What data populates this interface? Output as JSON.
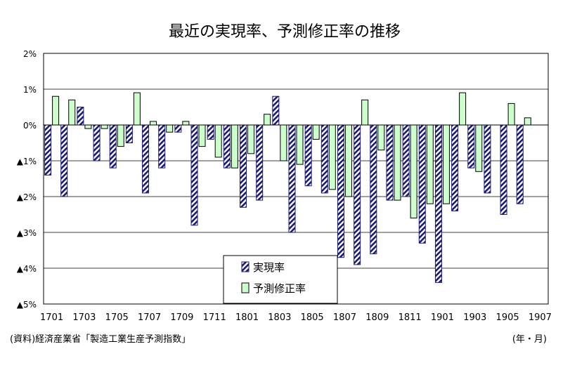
{
  "chart_data": {
    "type": "bar",
    "title": "最近の実現率、予測修正率の推移",
    "xlabel": "(年・月)",
    "ylabel": "",
    "ylim": [
      -5,
      2
    ],
    "grid": true,
    "legend_position": "lower-middle",
    "x_tick_labels": [
      "1701",
      "1703",
      "1705",
      "1707",
      "1709",
      "1711",
      "1801",
      "1803",
      "1805",
      "1807",
      "1809",
      "1811",
      "1901",
      "1903",
      "1905",
      "1907"
    ],
    "y_ticks": [
      2,
      1,
      0,
      -1,
      -2,
      -3,
      -4,
      -5
    ],
    "y_tick_labels": [
      "2%",
      "1%",
      "0%",
      "▲1%",
      "▲2%",
      "▲3%",
      "▲4%",
      "▲5%"
    ],
    "categories": [
      "1701",
      "1702",
      "1703",
      "1704",
      "1705",
      "1706",
      "1707",
      "1708",
      "1709",
      "1710",
      "1711",
      "1712",
      "1801",
      "1802",
      "1803",
      "1804",
      "1805",
      "1806",
      "1807",
      "1808",
      "1809",
      "1810",
      "1811",
      "1812",
      "1901",
      "1902",
      "1903",
      "1904",
      "1905",
      "1906",
      "1907"
    ],
    "series": [
      {
        "name": "実現率",
        "pattern": "diagonal-hatch",
        "color": "#1a1a7a",
        "values": [
          -1.4,
          -2.0,
          0.5,
          -1.0,
          -1.2,
          -0.5,
          -1.9,
          -1.2,
          -0.2,
          -2.8,
          -0.4,
          -1.2,
          -2.3,
          -2.1,
          0.8,
          -3.0,
          -1.7,
          -1.9,
          -3.7,
          -3.9,
          -3.6,
          -2.1,
          -2.0,
          -3.3,
          -4.4,
          -2.4,
          -1.2,
          -1.9,
          -2.5,
          -2.2,
          null
        ]
      },
      {
        "name": "予測修正率",
        "color": "#ccffcc",
        "values": [
          0.8,
          0.7,
          -0.1,
          -0.1,
          -0.6,
          0.9,
          0.1,
          -0.2,
          0.1,
          -0.6,
          -0.9,
          -1.2,
          -0.8,
          0.3,
          -1.0,
          -1.1,
          -0.4,
          -1.8,
          -2.0,
          0.7,
          -0.7,
          -2.1,
          -2.6,
          -2.2,
          -2.2,
          0.9,
          -1.3,
          null,
          0.6,
          0.2,
          null
        ]
      }
    ]
  },
  "source_note": "(資料)経済産業省「製造工業生産予測指数」"
}
